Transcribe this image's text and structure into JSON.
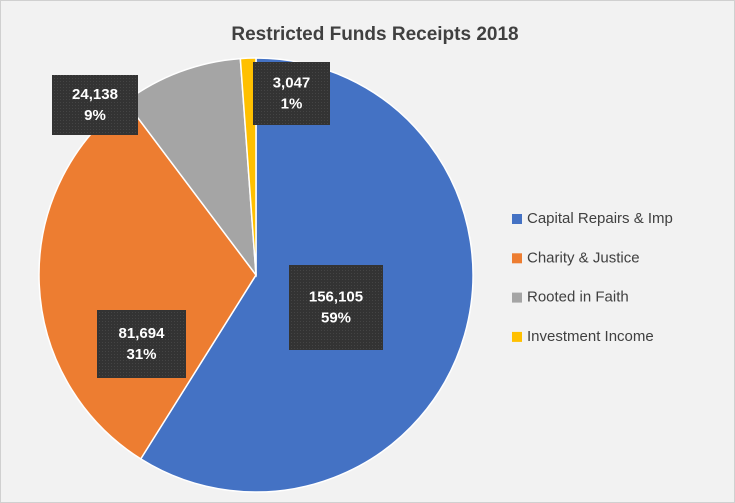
{
  "chart_data": {
    "type": "pie",
    "title": "Restricted Funds Receipts 2018",
    "categories": [
      "Capital Repairs & Imp",
      "Charity & Justice",
      "Rooted in Faith",
      "Investment Income"
    ],
    "values": [
      156105,
      81694,
      24138,
      3047
    ],
    "value_labels": [
      "156,105",
      "81,694",
      "24,138",
      "3,047"
    ],
    "percents": [
      59,
      31,
      9,
      1
    ],
    "percent_labels": [
      "59%",
      "31%",
      "9%",
      "1%"
    ],
    "colors": [
      "#4472c4",
      "#ed7d31",
      "#a5a5a5",
      "#ffc000"
    ],
    "legend": "right"
  }
}
